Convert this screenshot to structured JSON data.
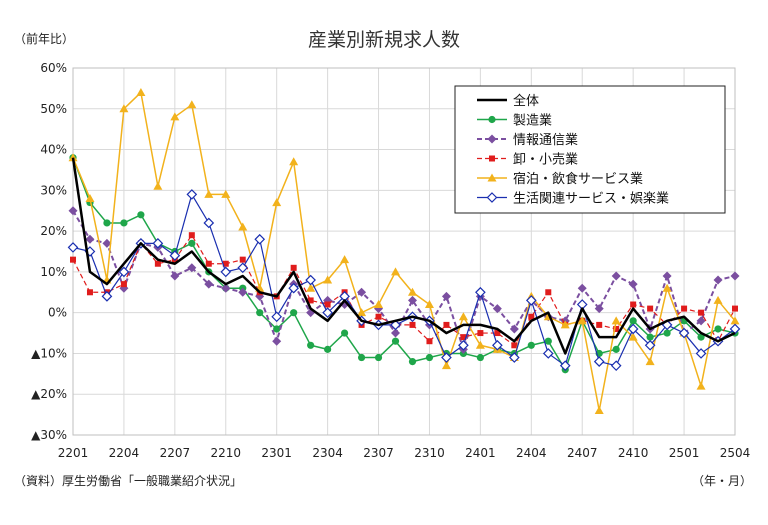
{
  "chart_data": {
    "type": "line",
    "title": "産業別新規求人数",
    "ylabel": "（前年比）",
    "xlabel": "（年・月）",
    "source": "（資料）厚生労働省「一般職業紹介状況」",
    "ylim": [
      -30,
      60
    ],
    "yticks": [
      60,
      50,
      40,
      30,
      20,
      10,
      0,
      -10,
      -20,
      -30
    ],
    "ytick_labels": [
      "60%",
      "50%",
      "40%",
      "30%",
      "20%",
      "10%",
      "0%",
      "▲10%",
      "▲20%",
      "▲30%"
    ],
    "grid": true,
    "legend_position": "top-right",
    "x": [
      "2201",
      "2202",
      "2203",
      "2204",
      "2205",
      "2206",
      "2207",
      "2208",
      "2209",
      "2210",
      "2211",
      "2212",
      "2301",
      "2302",
      "2303",
      "2304",
      "2305",
      "2306",
      "2307",
      "2308",
      "2309",
      "2310",
      "2311",
      "2312",
      "2401",
      "2402",
      "2403",
      "2404",
      "2405",
      "2406",
      "2407",
      "2408",
      "2409",
      "2410",
      "2411",
      "2412",
      "2501",
      "2502",
      "2503",
      "2504"
    ],
    "xtick_labels": [
      "2201",
      "2204",
      "2207",
      "2210",
      "2301",
      "2304",
      "2307",
      "2310",
      "2401",
      "2404",
      "2407",
      "2410",
      "2501",
      "2504"
    ],
    "series": [
      {
        "name": "全体",
        "color": "#000000",
        "marker": "none",
        "dash": "solid",
        "width": 2.5,
        "values": [
          38,
          10,
          7,
          12,
          17,
          13,
          12,
          15,
          10,
          7,
          9,
          5,
          4,
          10,
          1,
          -2,
          3,
          -2,
          -3,
          -2,
          -1,
          -2,
          -5,
          -3,
          -3,
          -4,
          -7,
          -2,
          0,
          -10,
          1,
          -6,
          -6,
          1,
          -4,
          -2,
          -1,
          -5,
          -7,
          -5
        ]
      },
      {
        "name": "製造業",
        "color": "#1fa64a",
        "marker": "circle",
        "dash": "solid",
        "width": 1.5,
        "values": [
          38,
          27,
          22,
          22,
          24,
          17,
          15,
          17,
          10,
          6,
          6,
          0,
          -4,
          0,
          -8,
          -9,
          -5,
          -11,
          -11,
          -7,
          -12,
          -11,
          -10,
          -10,
          -11,
          -9,
          -10,
          -8,
          -7,
          -14,
          -2,
          -10,
          -9,
          -2,
          -6,
          -5,
          -2,
          -6,
          -4,
          -5
        ]
      },
      {
        "name": "情報通信業",
        "color": "#7b4fa0",
        "marker": "diamond",
        "dash": "dash",
        "width": 2,
        "values": [
          25,
          18,
          17,
          6,
          17,
          16,
          9,
          11,
          7,
          6,
          5,
          4,
          -7,
          7,
          0,
          3,
          2,
          5,
          1,
          -5,
          3,
          -3,
          4,
          -9,
          4,
          1,
          -4,
          3,
          -1,
          -2,
          6,
          1,
          9,
          7,
          -4,
          9,
          -5,
          -2,
          8,
          9
        ]
      },
      {
        "name": "卸・小売業",
        "color": "#e01c1c",
        "marker": "square",
        "dash": "dash",
        "width": 1.2,
        "values": [
          13,
          5,
          5,
          7,
          17,
          12,
          13,
          19,
          12,
          12,
          13,
          5,
          4,
          11,
          3,
          2,
          5,
          -3,
          -1,
          -3,
          -3,
          -7,
          -3,
          -6,
          -5,
          -5,
          -8,
          -1,
          5,
          -3,
          -2,
          -3,
          -4,
          2,
          1,
          -3,
          1,
          0,
          -7,
          1
        ]
      },
      {
        "name": "宿泊・飲食サービス業",
        "color": "#f2b21c",
        "marker": "triangle",
        "dash": "solid",
        "width": 1.5,
        "values": [
          38,
          28,
          8,
          50,
          54,
          31,
          48,
          51,
          29,
          29,
          21,
          6,
          27,
          37,
          6,
          8,
          13,
          0,
          2,
          10,
          5,
          2,
          -13,
          -1,
          -8,
          -9,
          -11,
          4,
          -1,
          -3,
          -2,
          -24,
          -2,
          -6,
          -12,
          6,
          -5,
          -18,
          3,
          -2
        ]
      },
      {
        "name": "生活関連サービス・娯楽業",
        "color": "#1a2fb0",
        "marker": "hollow-diamond",
        "dash": "solid",
        "width": 1.2,
        "values": [
          16,
          15,
          4,
          10,
          17,
          17,
          14,
          29,
          22,
          10,
          11,
          18,
          -1,
          6,
          8,
          0,
          4,
          -2,
          -3,
          -3,
          -1,
          -2,
          -11,
          -8,
          5,
          -8,
          -11,
          3,
          -10,
          -13,
          2,
          -12,
          -13,
          -4,
          -8,
          -3,
          -5,
          -10,
          -7,
          -4
        ]
      }
    ]
  }
}
